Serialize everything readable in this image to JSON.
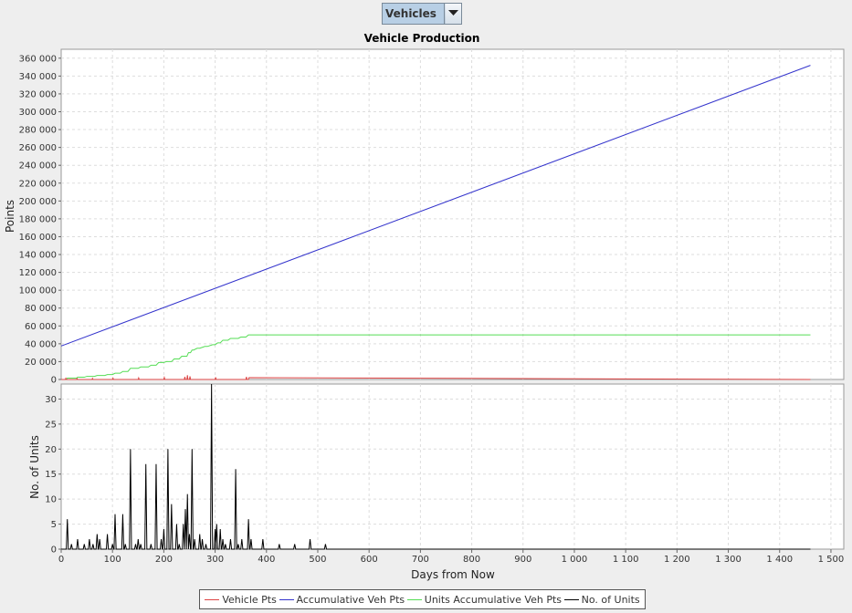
{
  "selector": {
    "value": "Vehicles"
  },
  "chart_data": [
    {
      "type": "line",
      "title": "Vehicle Production",
      "ylabel": "Points",
      "xlabel": "",
      "xlim": [
        0,
        1525
      ],
      "ylim": [
        0,
        370000
      ],
      "y_ticks": [
        0,
        20000,
        40000,
        60000,
        80000,
        100000,
        120000,
        140000,
        160000,
        180000,
        200000,
        220000,
        240000,
        260000,
        280000,
        300000,
        320000,
        340000,
        360000
      ],
      "y_tick_labels": [
        "0",
        "20 000",
        "40 000",
        "60 000",
        "80 000",
        "100 000",
        "120 000",
        "140 000",
        "160 000",
        "180 000",
        "200 000",
        "220 000",
        "240 000",
        "260 000",
        "280 000",
        "300 000",
        "320 000",
        "340 000",
        "360 000"
      ],
      "grid": true,
      "series": [
        {
          "name": "Accumulative Veh Pts",
          "color": "#3333cc",
          "x": [
            0,
            1460
          ],
          "y": [
            37500,
            352000
          ]
        },
        {
          "name": "Units Accumulative Veh Pts",
          "color": "#55dd55",
          "x": [
            0,
            10,
            12,
            30,
            32,
            45,
            50,
            65,
            70,
            85,
            90,
            100,
            105,
            115,
            120,
            130,
            135,
            150,
            155,
            170,
            175,
            185,
            190,
            200,
            205,
            215,
            220,
            230,
            235,
            245,
            248,
            252,
            255,
            258,
            265,
            270,
            280,
            285,
            295,
            300,
            305,
            310,
            315,
            325,
            330,
            345,
            350,
            360,
            365,
            370,
            1460
          ],
          "y": [
            0,
            0,
            1500,
            1500,
            2500,
            2500,
            3500,
            3500,
            4500,
            4500,
            5500,
            5500,
            7000,
            7000,
            9000,
            9000,
            12500,
            12500,
            14000,
            14000,
            16000,
            16000,
            19000,
            19000,
            20000,
            20000,
            23000,
            23000,
            26000,
            26000,
            30000,
            30000,
            33000,
            33000,
            35000,
            35000,
            37000,
            37000,
            39000,
            39000,
            41000,
            41000,
            44000,
            44000,
            46000,
            46000,
            47500,
            47500,
            50000,
            50000,
            50000
          ]
        },
        {
          "name": "Vehicle Pts",
          "color": "#dd4444",
          "x": [
            0,
            8,
            9,
            10,
            30,
            31,
            32,
            60,
            61,
            62,
            100,
            101,
            102,
            150,
            151,
            152,
            200,
            201,
            202,
            240,
            241,
            242,
            245,
            246,
            247,
            250,
            251,
            252,
            300,
            301,
            302,
            360,
            361,
            362,
            365,
            366,
            1460
          ],
          "y": [
            0,
            0,
            1400,
            0,
            0,
            1100,
            0,
            0,
            1200,
            0,
            0,
            1500,
            0,
            0,
            1800,
            0,
            0,
            2200,
            0,
            0,
            3000,
            0,
            0,
            4800,
            0,
            0,
            3500,
            0,
            0,
            2500,
            0,
            0,
            3000,
            0,
            0,
            2000,
            0
          ]
        }
      ]
    },
    {
      "type": "line",
      "title": "",
      "xlabel": "Days from Now",
      "ylabel": "No. of Units",
      "xlim": [
        0,
        1525
      ],
      "ylim": [
        0,
        33
      ],
      "y_ticks": [
        0,
        5,
        10,
        15,
        20,
        25,
        30
      ],
      "y_tick_labels": [
        "0",
        "5",
        "10",
        "15",
        "20",
        "25",
        "30"
      ],
      "x_ticks": [
        0,
        100,
        200,
        300,
        400,
        500,
        600,
        700,
        800,
        900,
        1000,
        1100,
        1200,
        1300,
        1400,
        1500
      ],
      "x_tick_labels": [
        "0",
        "100",
        "200",
        "300",
        "400",
        "500",
        "600",
        "700",
        "800",
        "900",
        "1 000",
        "1 100",
        "1 200",
        "1 300",
        "1 400",
        "1 500"
      ],
      "grid": true,
      "series": [
        {
          "name": "No. of Units",
          "color": "#000000",
          "spikes": [
            [
              12,
              6
            ],
            [
              20,
              1
            ],
            [
              32,
              2
            ],
            [
              45,
              1
            ],
            [
              55,
              2
            ],
            [
              62,
              1
            ],
            [
              70,
              3
            ],
            [
              75,
              2
            ],
            [
              90,
              3
            ],
            [
              100,
              1
            ],
            [
              105,
              7
            ],
            [
              120,
              7
            ],
            [
              125,
              1
            ],
            [
              135,
              20
            ],
            [
              145,
              1
            ],
            [
              150,
              2
            ],
            [
              155,
              1
            ],
            [
              165,
              17
            ],
            [
              175,
              1
            ],
            [
              185,
              17
            ],
            [
              195,
              2
            ],
            [
              200,
              4
            ],
            [
              208,
              20
            ],
            [
              215,
              9
            ],
            [
              225,
              5
            ],
            [
              230,
              1
            ],
            [
              238,
              5
            ],
            [
              242,
              8
            ],
            [
              246,
              11
            ],
            [
              250,
              3
            ],
            [
              255,
              20
            ],
            [
              260,
              2
            ],
            [
              270,
              3
            ],
            [
              275,
              2
            ],
            [
              282,
              1
            ],
            [
              293,
              33
            ],
            [
              300,
              4
            ],
            [
              303,
              5
            ],
            [
              310,
              4
            ],
            [
              315,
              2
            ],
            [
              320,
              1
            ],
            [
              330,
              2
            ],
            [
              340,
              16
            ],
            [
              345,
              1
            ],
            [
              352,
              2
            ],
            [
              365,
              6
            ],
            [
              370,
              2
            ],
            [
              393,
              2
            ],
            [
              425,
              1
            ],
            [
              455,
              1
            ],
            [
              485,
              2
            ],
            [
              515,
              1
            ]
          ]
        }
      ]
    }
  ],
  "legend": [
    {
      "label": "Vehicle Pts",
      "color": "#dd4444"
    },
    {
      "label": "Accumulative Veh Pts",
      "color": "#3333cc"
    },
    {
      "label": "Units Accumulative Veh Pts",
      "color": "#55dd55"
    },
    {
      "label": "No. of Units",
      "color": "#000000"
    }
  ]
}
